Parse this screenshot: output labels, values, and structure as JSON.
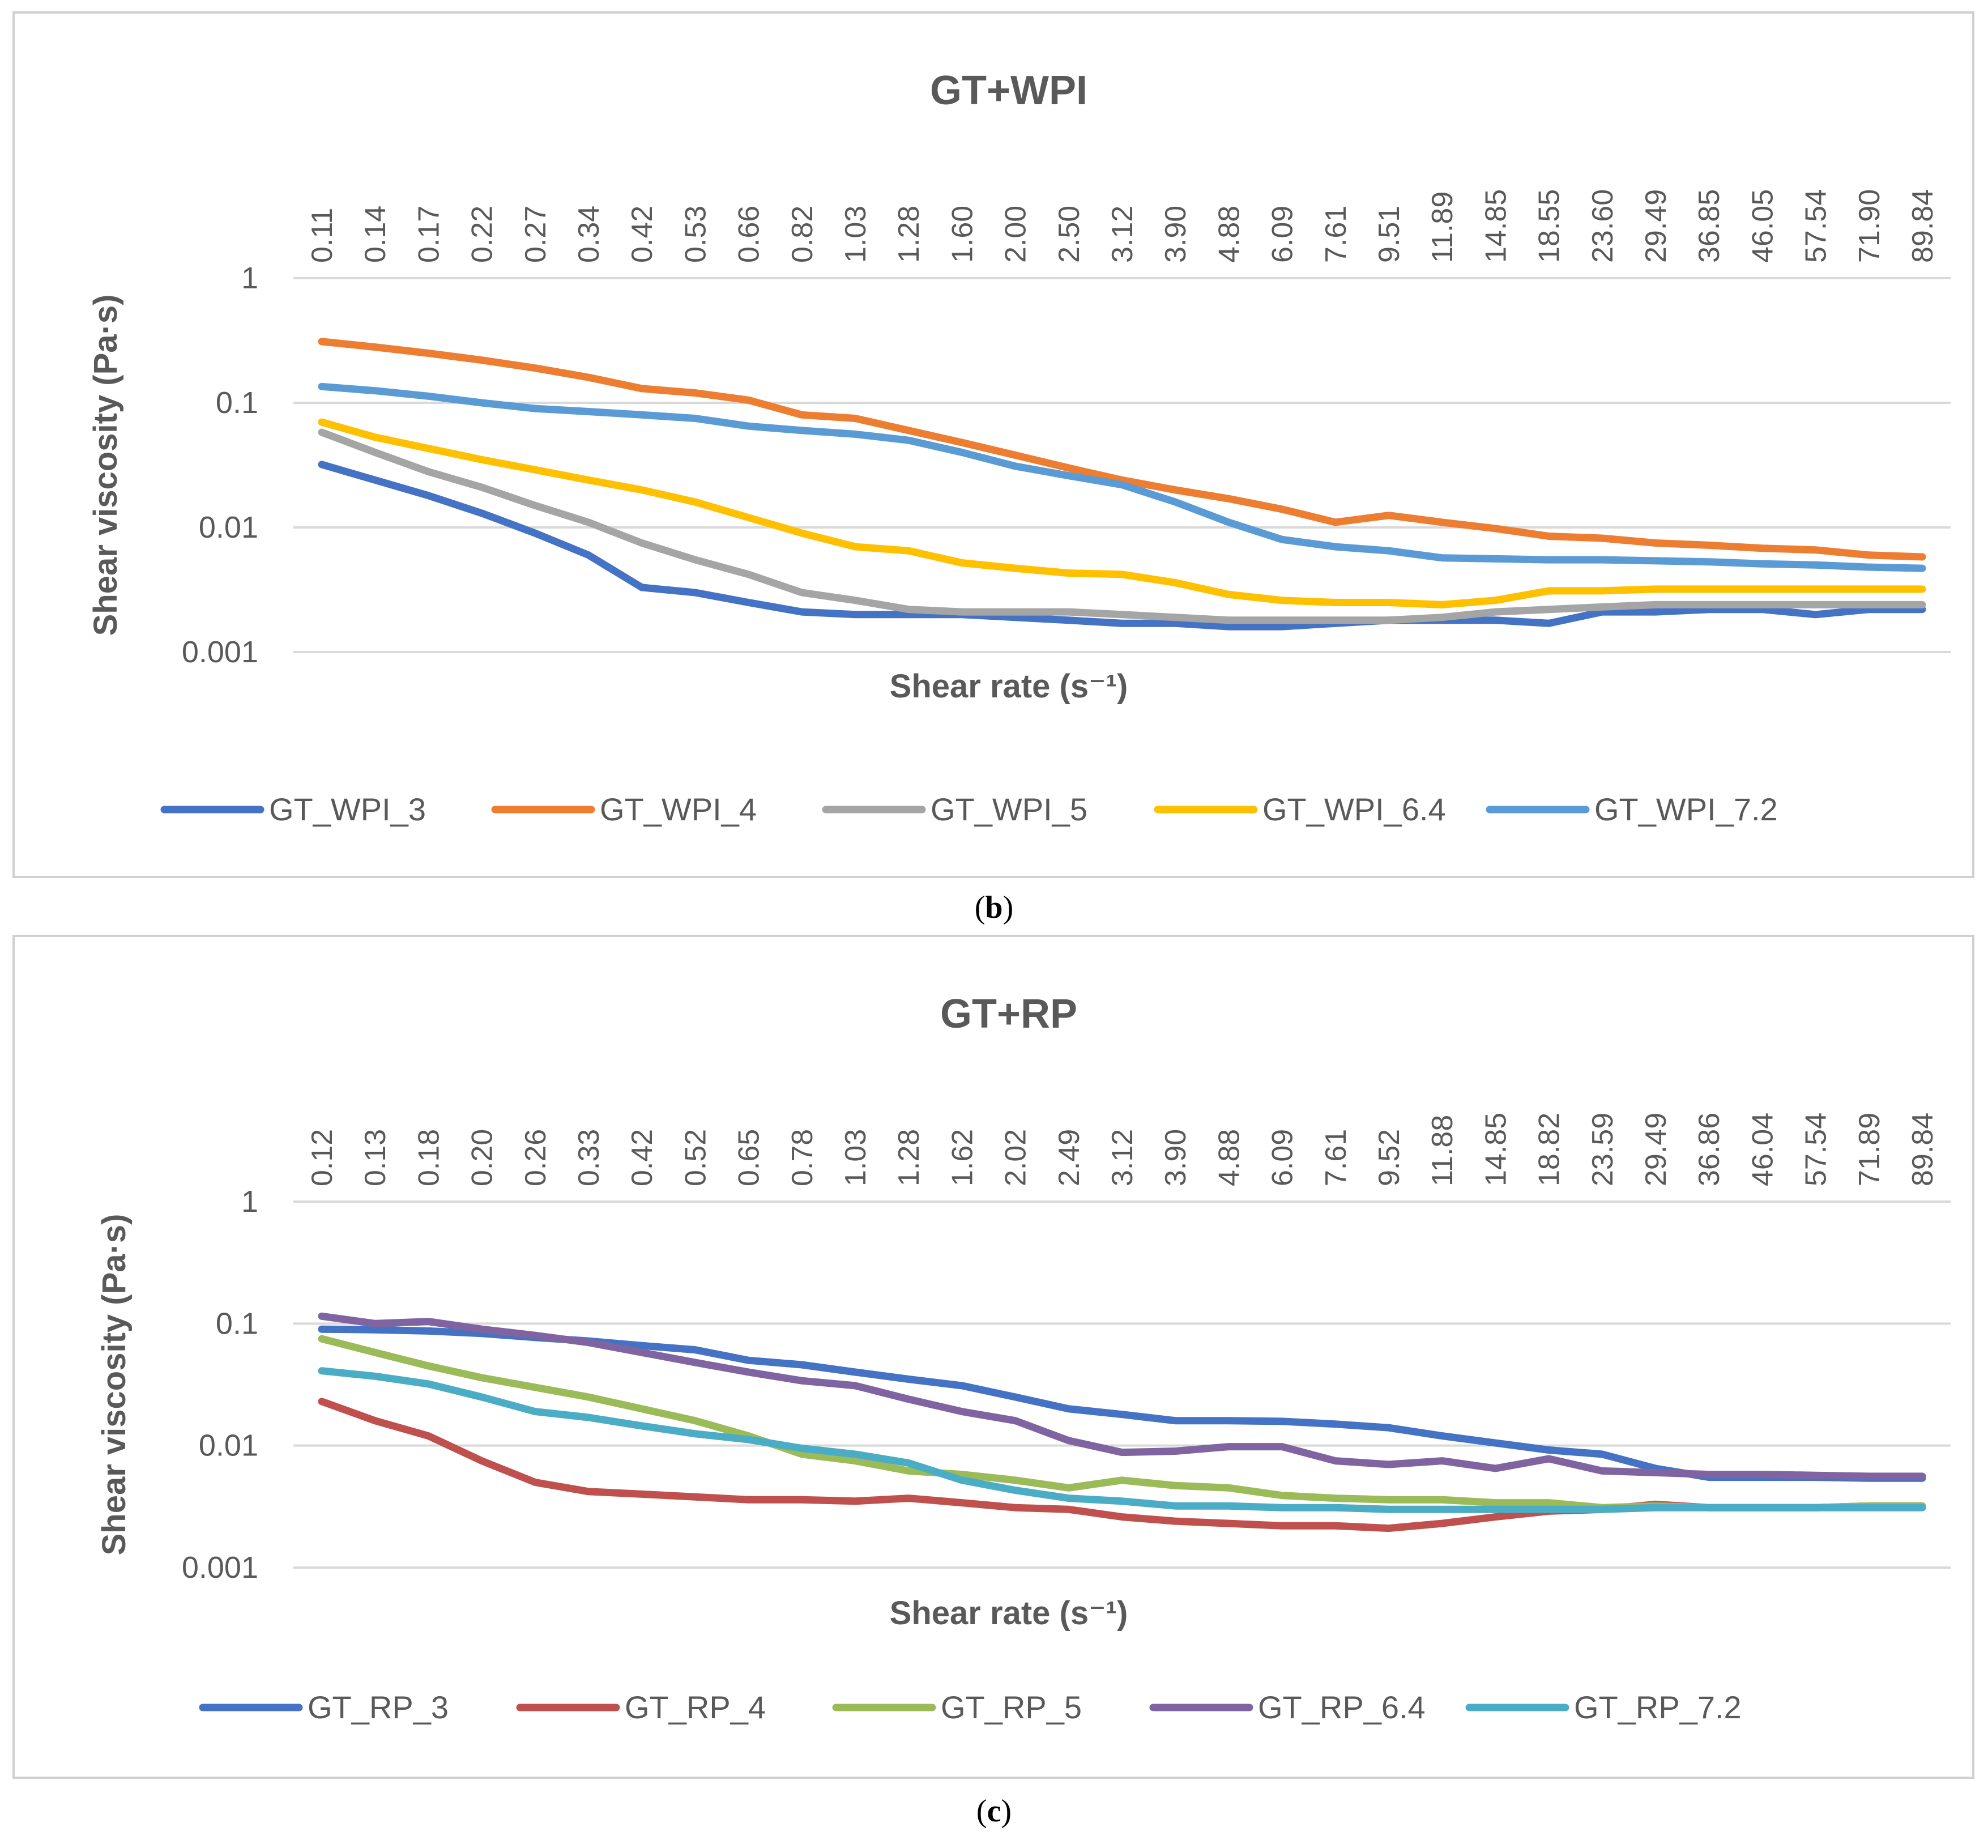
{
  "captions": {
    "b": "b",
    "c": "c"
  },
  "chart_data": [
    {
      "type": "line",
      "title": "GT+WPI",
      "xlabel": "Shear rate (s⁻¹)",
      "ylabel": "Shear viscosity (Pa·s)",
      "yscale": "log",
      "ylim": [
        0.001,
        1
      ],
      "yticks": [
        "1",
        "0.1",
        "0.01",
        "0.001"
      ],
      "x_axis_position": "top",
      "legend_position": "bottom",
      "categories": [
        "0.11",
        "0.14",
        "0.17",
        "0.22",
        "0.27",
        "0.34",
        "0.42",
        "0.53",
        "0.66",
        "0.82",
        "1.03",
        "1.28",
        "1.60",
        "2.00",
        "2.50",
        "3.12",
        "3.90",
        "4.88",
        "6.09",
        "7.61",
        "9.51",
        "11.89",
        "14.85",
        "18.55",
        "23.60",
        "29.49",
        "36.85",
        "46.05",
        "57.54",
        "71.90",
        "89.84"
      ],
      "series": [
        {
          "name": "GT_WPI_3",
          "color": "#4472C4",
          "values": [
            0.032,
            0.024,
            0.018,
            0.013,
            0.009,
            0.006,
            0.0033,
            0.003,
            0.0025,
            0.0021,
            0.002,
            0.002,
            0.002,
            0.0019,
            0.0018,
            0.0017,
            0.0017,
            0.0016,
            0.0016,
            0.0017,
            0.0018,
            0.0018,
            0.0018,
            0.0017,
            0.0021,
            0.0021,
            0.0022,
            0.0022,
            0.002,
            0.0022,
            0.0022
          ]
        },
        {
          "name": "GT_WPI_4",
          "color": "#ED7D31",
          "values": [
            0.31,
            0.28,
            0.25,
            0.22,
            0.19,
            0.16,
            0.13,
            0.12,
            0.105,
            0.08,
            0.075,
            0.06,
            0.048,
            0.038,
            0.03,
            0.024,
            0.02,
            0.017,
            0.014,
            0.011,
            0.0125,
            0.011,
            0.0098,
            0.0085,
            0.0082,
            0.0075,
            0.0072,
            0.0068,
            0.0066,
            0.006,
            0.0058
          ]
        },
        {
          "name": "GT_WPI_5",
          "color": "#A5A5A5",
          "values": [
            0.058,
            0.04,
            0.028,
            0.021,
            0.015,
            0.011,
            0.0075,
            0.0055,
            0.0042,
            0.003,
            0.0026,
            0.0022,
            0.0021,
            0.0021,
            0.0021,
            0.002,
            0.0019,
            0.0018,
            0.0018,
            0.0018,
            0.0018,
            0.0019,
            0.0021,
            0.0022,
            0.0023,
            0.0024,
            0.0024,
            0.0024,
            0.0024,
            0.0024,
            0.0024
          ]
        },
        {
          "name": "GT_WPI_6.4",
          "color": "#FFC000",
          "values": [
            0.07,
            0.053,
            0.043,
            0.035,
            0.029,
            0.024,
            0.02,
            0.016,
            0.012,
            0.009,
            0.007,
            0.0065,
            0.0052,
            0.0047,
            0.0043,
            0.0042,
            0.0036,
            0.0029,
            0.0026,
            0.0025,
            0.0025,
            0.0024,
            0.0026,
            0.0031,
            0.0031,
            0.0032,
            0.0032,
            0.0032,
            0.0032,
            0.0032,
            0.0032
          ]
        },
        {
          "name": "GT_WPI_7.2",
          "color": "#5B9BD5",
          "values": [
            0.135,
            0.125,
            0.113,
            0.1,
            0.09,
            0.085,
            0.08,
            0.075,
            0.065,
            0.06,
            0.056,
            0.05,
            0.04,
            0.031,
            0.026,
            0.022,
            0.016,
            0.011,
            0.008,
            0.007,
            0.0065,
            0.0057,
            0.0056,
            0.0055,
            0.0055,
            0.0054,
            0.0053,
            0.0051,
            0.005,
            0.0048,
            0.0047
          ]
        }
      ]
    },
    {
      "type": "line",
      "title": "GT+RP",
      "xlabel": "Shear rate (s⁻¹)",
      "ylabel": "Shear viscosity (Pa·s)",
      "yscale": "log",
      "ylim": [
        0.001,
        1
      ],
      "yticks": [
        "1",
        "0.1",
        "0.01",
        "0.001"
      ],
      "x_axis_position": "top",
      "legend_position": "bottom",
      "categories": [
        "0.12",
        "0.13",
        "0.18",
        "0.20",
        "0.26",
        "0.33",
        "0.42",
        "0.52",
        "0.65",
        "0.78",
        "1.03",
        "1.28",
        "1.62",
        "2.02",
        "2.49",
        "3.12",
        "3.90",
        "4.88",
        "6.09",
        "7.61",
        "9.52",
        "11.88",
        "14.85",
        "18.82",
        "23.59",
        "29.49",
        "36.86",
        "46.04",
        "57.54",
        "71.89",
        "89.84"
      ],
      "series": [
        {
          "name": "GT_RP_3",
          "color": "#4472C4",
          "values": [
            0.09,
            0.089,
            0.087,
            0.083,
            0.077,
            0.072,
            0.066,
            0.061,
            0.05,
            0.046,
            0.04,
            0.035,
            0.031,
            0.025,
            0.02,
            0.018,
            0.016,
            0.016,
            0.0158,
            0.015,
            0.014,
            0.012,
            0.0105,
            0.0092,
            0.0085,
            0.0065,
            0.0055,
            0.0055,
            0.0055,
            0.0054,
            0.0054
          ]
        },
        {
          "name": "GT_RP_4",
          "color": "#C0504D",
          "values": [
            0.023,
            0.016,
            0.012,
            0.0075,
            0.005,
            0.0042,
            0.004,
            0.0038,
            0.0036,
            0.0036,
            0.0035,
            0.0037,
            0.0034,
            0.0031,
            0.003,
            0.0026,
            0.0024,
            0.0023,
            0.0022,
            0.0022,
            0.0021,
            0.0023,
            0.0026,
            0.0029,
            0.003,
            0.0033,
            0.0031,
            0.0031,
            0.0031,
            0.0032,
            0.0032
          ]
        },
        {
          "name": "GT_RP_5",
          "color": "#9BBB59",
          "values": [
            0.075,
            0.058,
            0.045,
            0.036,
            0.03,
            0.025,
            0.02,
            0.016,
            0.012,
            0.0085,
            0.0075,
            0.0062,
            0.0058,
            0.0052,
            0.0045,
            0.0052,
            0.0047,
            0.0045,
            0.0039,
            0.0037,
            0.0036,
            0.0036,
            0.0034,
            0.0034,
            0.0031,
            0.0032,
            0.0031,
            0.0031,
            0.0031,
            0.0032,
            0.0032
          ]
        },
        {
          "name": "GT_RP_6.4",
          "color": "#8064A2",
          "values": [
            0.115,
            0.1,
            0.104,
            0.09,
            0.08,
            0.07,
            0.058,
            0.048,
            0.04,
            0.034,
            0.031,
            0.024,
            0.019,
            0.016,
            0.011,
            0.0088,
            0.009,
            0.0098,
            0.0098,
            0.0075,
            0.007,
            0.0075,
            0.0065,
            0.0078,
            0.0062,
            0.006,
            0.0058,
            0.0058,
            0.0057,
            0.0056,
            0.0056
          ]
        },
        {
          "name": "GT_RP_7.2",
          "color": "#4BACC6",
          "values": [
            0.041,
            0.037,
            0.032,
            0.025,
            0.019,
            0.017,
            0.0145,
            0.0125,
            0.0112,
            0.0095,
            0.0085,
            0.0072,
            0.0052,
            0.0043,
            0.0037,
            0.0035,
            0.0032,
            0.0032,
            0.0031,
            0.0031,
            0.003,
            0.003,
            0.003,
            0.003,
            0.003,
            0.0031,
            0.0031,
            0.0031,
            0.0031,
            0.0031,
            0.0031
          ]
        }
      ]
    }
  ]
}
